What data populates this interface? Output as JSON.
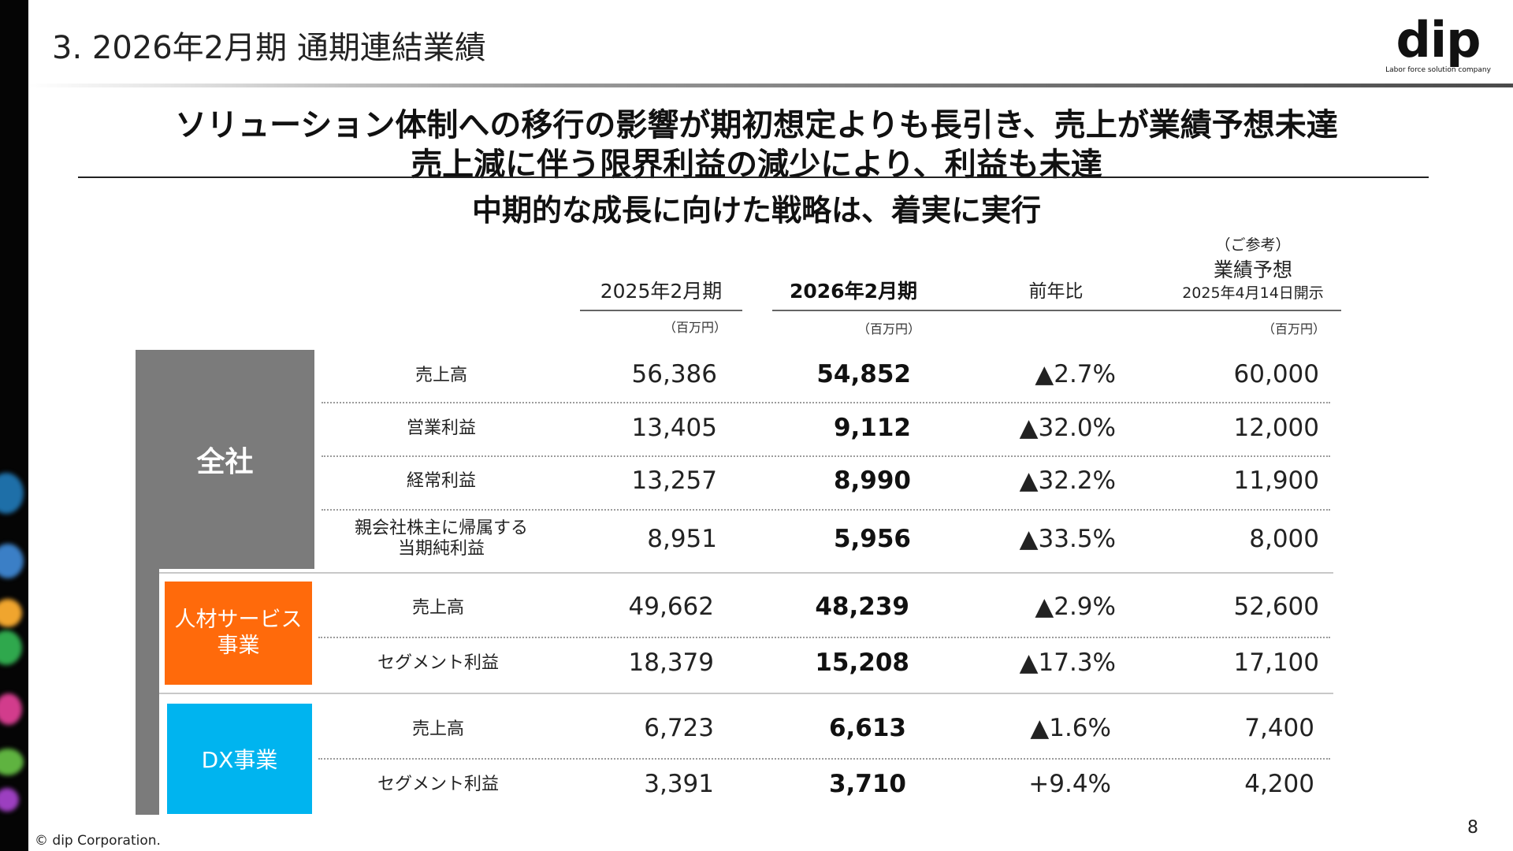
{
  "slide_title": "3. 2026年2月期 通期連結業績",
  "logo": {
    "word": "dip",
    "tagline": "Labor force solution company"
  },
  "headline": {
    "line1": "ソリューション体制への移行の影響が期初想定よりも長引き、売上が業績予想未達",
    "line2": "売上減に伴う限界利益の減少により、利益も未達",
    "line3": "中期的な成長に向けた戦略は、着実に実行"
  },
  "columns": {
    "prev": "2025年2月期",
    "curr": "2026年2月期",
    "yoy": "前年比",
    "forecast_note": "（ご参考）",
    "forecast_title": "業績予想",
    "forecast_date": "2025年4月14日開示",
    "unit": "（百万円）"
  },
  "segments": {
    "zensha": "全社",
    "jinzai": "人材サービス\n事業",
    "dx": "DX事業"
  },
  "rows": [
    {
      "label": "売上高",
      "prev": "56,386",
      "curr": "54,852",
      "yoy": "▲2.7%",
      "forecast": "60,000"
    },
    {
      "label": "営業利益",
      "prev": "13,405",
      "curr": "9,112",
      "yoy": "▲32.0%",
      "forecast": "12,000"
    },
    {
      "label": "経常利益",
      "prev": "13,257",
      "curr": "8,990",
      "yoy": "▲32.2%",
      "forecast": "11,900"
    },
    {
      "label": "親会社株主に帰属する\n当期純利益",
      "prev": "8,951",
      "curr": "5,956",
      "yoy": "▲33.5%",
      "forecast": "8,000"
    },
    {
      "label": "売上高",
      "prev": "49,662",
      "curr": "48,239",
      "yoy": "▲2.9%",
      "forecast": "52,600"
    },
    {
      "label": "セグメント利益",
      "prev": "18,379",
      "curr": "15,208",
      "yoy": "▲17.3%",
      "forecast": "17,100"
    },
    {
      "label": "売上高",
      "prev": "6,723",
      "curr": "6,613",
      "yoy": "▲1.6%",
      "forecast": "7,400"
    },
    {
      "label": "セグメント利益",
      "prev": "3,391",
      "curr": "3,710",
      "yoy": "+9.4%",
      "forecast": "4,200"
    }
  ],
  "footer": {
    "copyright": "© dip Corporation.",
    "page_number": "8"
  },
  "colors": {
    "zensha": "#7b7b7b",
    "jinzai": "#ff6a0b",
    "dx": "#00b4ef"
  }
}
